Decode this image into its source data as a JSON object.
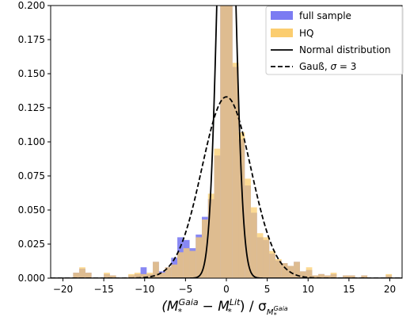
{
  "chart_data": {
    "type": "bar",
    "title": "",
    "ylabel": "",
    "xlabel": {
      "lhs_base": "(M",
      "lhs_sub": "*",
      "lhs_sup": "Gaia",
      "minus": " − M",
      "rhs_sub": "*",
      "rhs_sup": "Lit",
      "close": ") / σ",
      "sigma_sub": "M",
      "sigma_sub_sub": "*",
      "sigma_sub_sup": "Gaia"
    },
    "xlim": [
      -21.5,
      21.5
    ],
    "ylim": [
      0,
      0.2
    ],
    "x_ticks": [
      -20,
      -15,
      -10,
      -5,
      0,
      5,
      10,
      15,
      20
    ],
    "x_tick_labels": [
      "−20",
      "−15",
      "−10",
      "−5",
      "0",
      "5",
      "10",
      "15",
      "20"
    ],
    "y_ticks": [
      0,
      0.025,
      0.05,
      0.075,
      0.1,
      0.125,
      0.15,
      0.175,
      0.2
    ],
    "y_tick_labels": [
      "0.000",
      "0.025",
      "0.050",
      "0.075",
      "0.100",
      "0.125",
      "0.150",
      "0.175",
      "0.200"
    ],
    "grid": false,
    "legend": {
      "placement": "top-right",
      "entries": [
        {
          "label": "full sample",
          "kind": "patch",
          "color": "#7b7bf2"
        },
        {
          "label": "HQ",
          "kind": "patch",
          "color": "#fbcd6f"
        },
        {
          "label": "Normal distribution",
          "kind": "line",
          "style": "solid",
          "color": "#000000"
        },
        {
          "label_prefix": "Gauß, ",
          "label_sigma": "σ",
          "label_suffix": " = 3",
          "kind": "line",
          "style": "dashed",
          "color": "#000000"
        }
      ]
    },
    "bin_width": 0.75,
    "series": [
      {
        "name": "full sample",
        "color": "#7b7bf2",
        "bins": [
          {
            "x0": -18.75,
            "y": 0.004
          },
          {
            "x0": -18.0,
            "y": 0.007
          },
          {
            "x0": -17.25,
            "y": 0.004
          },
          {
            "x0": -15.0,
            "y": 0.003
          },
          {
            "x0": -14.25,
            "y": 0.002
          },
          {
            "x0": -12.0,
            "y": 0.002
          },
          {
            "x0": -11.25,
            "y": 0.003
          },
          {
            "x0": -10.5,
            "y": 0.008
          },
          {
            "x0": -9.75,
            "y": 0.003
          },
          {
            "x0": -9.0,
            "y": 0.012
          },
          {
            "x0": -8.25,
            "y": 0.005
          },
          {
            "x0": -7.5,
            "y": 0.008
          },
          {
            "x0": -6.75,
            "y": 0.015
          },
          {
            "x0": -6.0,
            "y": 0.03
          },
          {
            "x0": -5.25,
            "y": 0.028
          },
          {
            "x0": -4.5,
            "y": 0.022
          },
          {
            "x0": -3.75,
            "y": 0.032
          },
          {
            "x0": -3.0,
            "y": 0.045
          },
          {
            "x0": -2.25,
            "y": 0.058
          },
          {
            "x0": -1.5,
            "y": 0.09
          },
          {
            "x0": -0.75,
            "y": 0.2
          },
          {
            "x0": 0.0,
            "y": 0.2
          },
          {
            "x0": 0.75,
            "y": 0.155
          },
          {
            "x0": 1.5,
            "y": 0.102
          },
          {
            "x0": 2.25,
            "y": 0.068
          },
          {
            "x0": 3.0,
            "y": 0.048
          },
          {
            "x0": 3.75,
            "y": 0.03
          },
          {
            "x0": 4.5,
            "y": 0.028
          },
          {
            "x0": 5.25,
            "y": 0.018
          },
          {
            "x0": 6.0,
            "y": 0.013
          },
          {
            "x0": 6.75,
            "y": 0.011
          },
          {
            "x0": 7.5,
            "y": 0.009
          },
          {
            "x0": 8.25,
            "y": 0.012
          },
          {
            "x0": 9.0,
            "y": 0.005
          },
          {
            "x0": 9.75,
            "y": 0.006
          },
          {
            "x0": 10.5,
            "y": 0.002
          },
          {
            "x0": 11.25,
            "y": 0.003
          },
          {
            "x0": 12.0,
            "y": 0.002
          },
          {
            "x0": 12.75,
            "y": 0.003
          },
          {
            "x0": 14.25,
            "y": 0.002
          },
          {
            "x0": 15.0,
            "y": 0.002
          },
          {
            "x0": 16.5,
            "y": 0.002
          },
          {
            "x0": 19.5,
            "y": 0.002
          }
        ]
      },
      {
        "name": "HQ",
        "color": "#fbcd6f",
        "bins": [
          {
            "x0": -18.75,
            "y": 0.004
          },
          {
            "x0": -18.0,
            "y": 0.008
          },
          {
            "x0": -17.25,
            "y": 0.004
          },
          {
            "x0": -15.0,
            "y": 0.004
          },
          {
            "x0": -14.25,
            "y": 0.002
          },
          {
            "x0": -12.0,
            "y": 0.003
          },
          {
            "x0": -11.25,
            "y": 0.004
          },
          {
            "x0": -10.5,
            "y": 0.003
          },
          {
            "x0": -9.75,
            "y": 0.004
          },
          {
            "x0": -9.0,
            "y": 0.012
          },
          {
            "x0": -8.25,
            "y": 0.004
          },
          {
            "x0": -7.5,
            "y": 0.008
          },
          {
            "x0": -6.75,
            "y": 0.01
          },
          {
            "x0": -6.0,
            "y": 0.019
          },
          {
            "x0": -5.25,
            "y": 0.022
          },
          {
            "x0": -4.5,
            "y": 0.02
          },
          {
            "x0": -3.75,
            "y": 0.03
          },
          {
            "x0": -3.0,
            "y": 0.043
          },
          {
            "x0": -2.25,
            "y": 0.062
          },
          {
            "x0": -1.5,
            "y": 0.095
          },
          {
            "x0": -0.75,
            "y": 0.2
          },
          {
            "x0": 0.0,
            "y": 0.2
          },
          {
            "x0": 0.75,
            "y": 0.158
          },
          {
            "x0": 1.5,
            "y": 0.107
          },
          {
            "x0": 2.25,
            "y": 0.073
          },
          {
            "x0": 3.0,
            "y": 0.052
          },
          {
            "x0": 3.75,
            "y": 0.033
          },
          {
            "x0": 4.5,
            "y": 0.03
          },
          {
            "x0": 5.25,
            "y": 0.02
          },
          {
            "x0": 6.0,
            "y": 0.014
          },
          {
            "x0": 6.75,
            "y": 0.011
          },
          {
            "x0": 7.5,
            "y": 0.009
          },
          {
            "x0": 8.25,
            "y": 0.012
          },
          {
            "x0": 9.0,
            "y": 0.005
          },
          {
            "x0": 9.75,
            "y": 0.008
          },
          {
            "x0": 10.5,
            "y": 0.002
          },
          {
            "x0": 11.25,
            "y": 0.003
          },
          {
            "x0": 12.0,
            "y": 0.002
          },
          {
            "x0": 12.75,
            "y": 0.004
          },
          {
            "x0": 14.25,
            "y": 0.002
          },
          {
            "x0": 15.0,
            "y": 0.002
          },
          {
            "x0": 16.5,
            "y": 0.002
          },
          {
            "x0": 19.5,
            "y": 0.003
          }
        ]
      }
    ],
    "curves": [
      {
        "name": "Normal distribution",
        "kind": "gaussian",
        "mu": 0,
        "sigma": 1,
        "amplitude": 0.399,
        "style": "solid"
      },
      {
        "name": "Gauß, σ = 3",
        "kind": "gaussian",
        "mu": 0,
        "sigma": 3,
        "amplitude": 0.133,
        "style": "dashed"
      }
    ]
  }
}
